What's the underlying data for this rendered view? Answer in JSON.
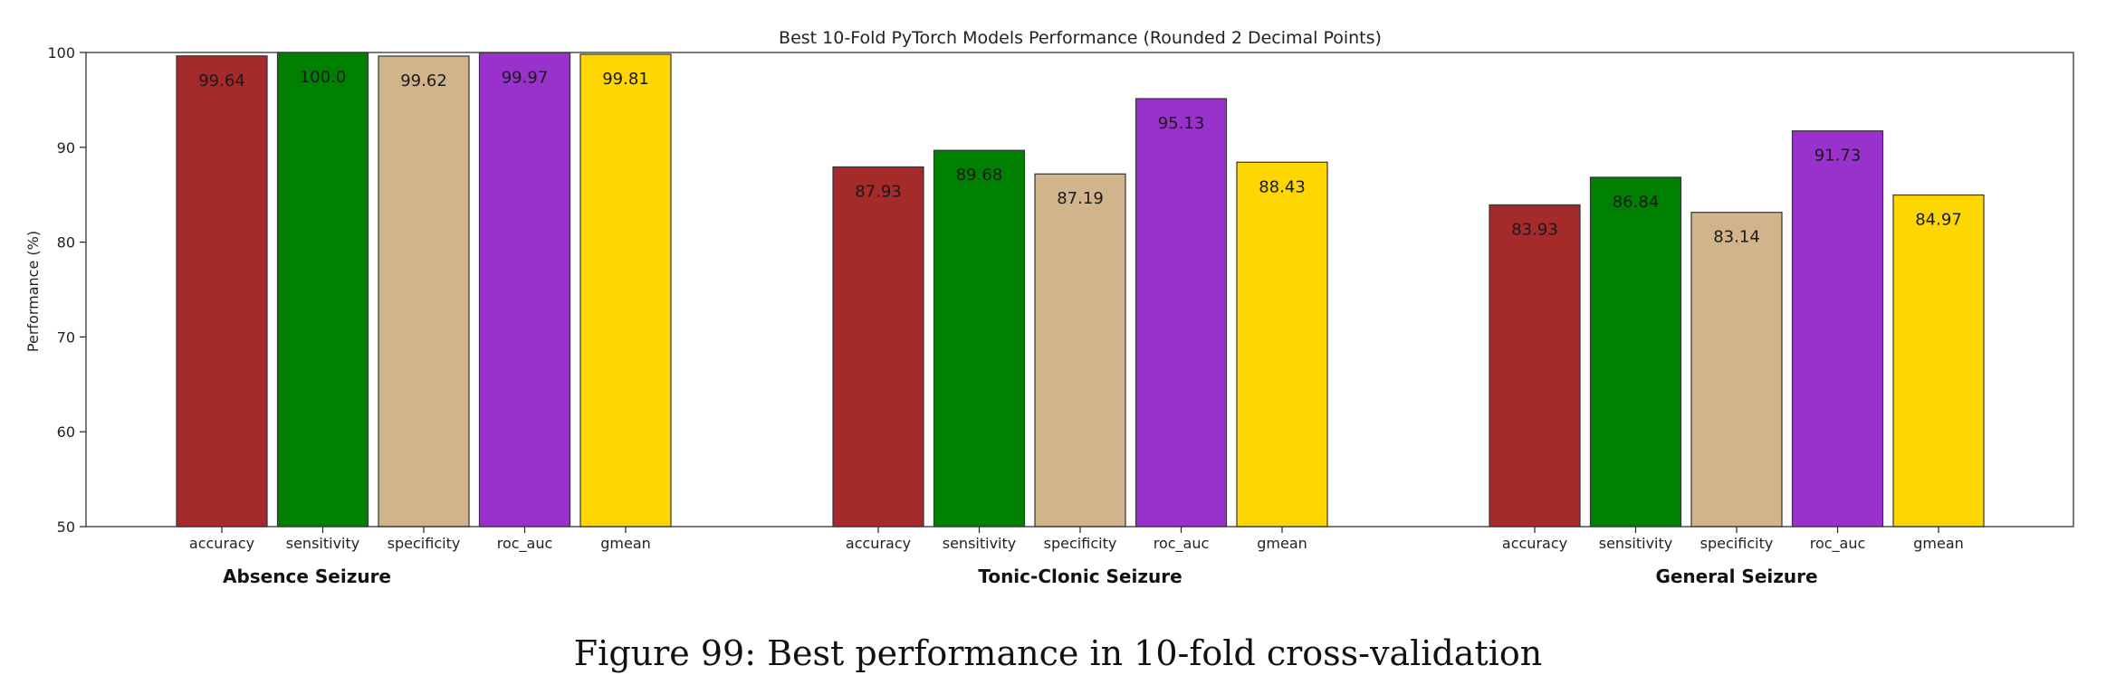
{
  "caption": "Figure 99: Best performance in 10-fold cross-validation",
  "chart_data": {
    "type": "bar",
    "title": "Best 10-Fold PyTorch Models Performance (Rounded 2 Decimal Points)",
    "ylabel": "Performance (%)",
    "xlabel": "",
    "ylim": [
      50,
      100
    ],
    "yticks": [
      50,
      60,
      70,
      80,
      90,
      100
    ],
    "grid": false,
    "legend": "none",
    "metrics": [
      "accuracy",
      "sensitivity",
      "specificity",
      "roc_auc",
      "gmean"
    ],
    "colors": {
      "accuracy": "#a52a2a",
      "sensitivity": "#008000",
      "specificity": "#d2b48c",
      "roc_auc": "#9932cc",
      "gmean": "#ffd700"
    },
    "groups": [
      {
        "name": "Absence Seizure",
        "values": [
          99.64,
          100.0,
          99.62,
          99.97,
          99.81
        ],
        "labels": [
          "99.64",
          "100.0",
          "99.62",
          "99.97",
          "99.81"
        ]
      },
      {
        "name": "Tonic-Clonic Seizure",
        "values": [
          87.93,
          89.68,
          87.19,
          95.13,
          88.43
        ],
        "labels": [
          "87.93",
          "89.68",
          "87.19",
          "95.13",
          "88.43"
        ]
      },
      {
        "name": "General Seizure",
        "values": [
          83.93,
          86.84,
          83.14,
          91.73,
          84.97
        ],
        "labels": [
          "83.93",
          "86.84",
          "83.14",
          "91.73",
          "84.97"
        ]
      }
    ]
  }
}
